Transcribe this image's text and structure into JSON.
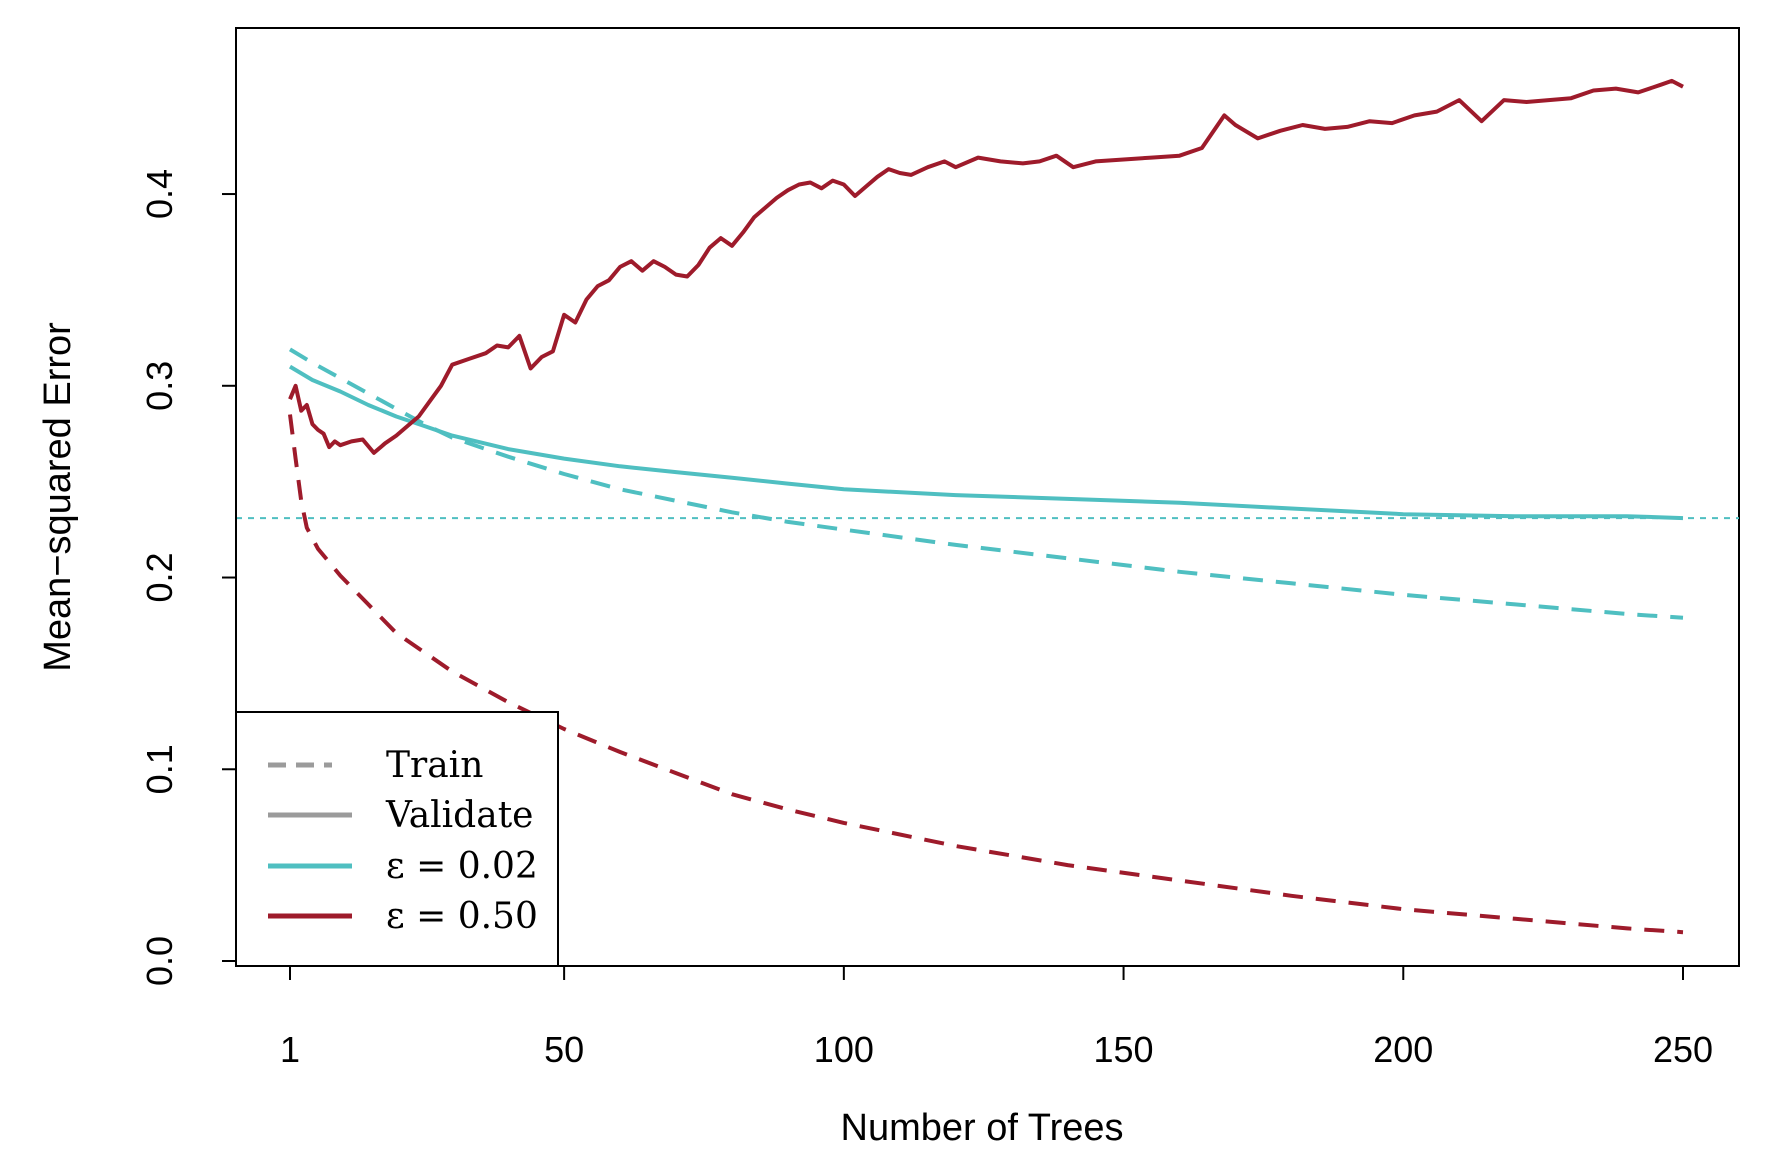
{
  "chart_data": {
    "type": "line",
    "xlabel": "Number of Trees",
    "ylabel": "Mean−squared Error",
    "xlim": [
      1,
      250
    ],
    "ylim": [
      0,
      0.46
    ],
    "x_ticks": [
      1,
      50,
      100,
      150,
      200,
      250
    ],
    "y_ticks": [
      0.0,
      0.1,
      0.2,
      0.3,
      0.4
    ],
    "y_tick_labels": [
      "0.0",
      "0.1",
      "0.2",
      "0.3",
      "0.4"
    ],
    "reference_line": {
      "y": 0.231,
      "style": "dotted",
      "color": "#4fbfc1"
    },
    "legend": {
      "position": "bottom-left",
      "entries": [
        {
          "label": "Train",
          "style": "dashed",
          "color": "#9b9b9b"
        },
        {
          "label": "Validate",
          "style": "solid",
          "color": "#9b9b9b"
        },
        {
          "label": "ε = 0.02",
          "style": "solid",
          "color": "#4fbfc1"
        },
        {
          "label": "ε = 0.50",
          "style": "solid",
          "color": "#9e1b2b"
        }
      ]
    },
    "series": [
      {
        "epsilon": "0.02",
        "split": "Train",
        "color": "#4fbfc1",
        "style": "dashed",
        "x": [
          1,
          5,
          10,
          15,
          20,
          25,
          30,
          40,
          50,
          60,
          70,
          80,
          90,
          100,
          120,
          140,
          160,
          180,
          200,
          220,
          240,
          250
        ],
        "y": [
          0.319,
          0.312,
          0.304,
          0.296,
          0.288,
          0.28,
          0.273,
          0.263,
          0.254,
          0.246,
          0.24,
          0.234,
          0.229,
          0.225,
          0.217,
          0.21,
          0.203,
          0.197,
          0.191,
          0.186,
          0.181,
          0.179
        ]
      },
      {
        "epsilon": "0.02",
        "split": "Validate",
        "color": "#4fbfc1",
        "style": "solid",
        "x": [
          1,
          5,
          10,
          15,
          20,
          25,
          30,
          40,
          50,
          60,
          70,
          80,
          90,
          100,
          120,
          140,
          160,
          180,
          200,
          220,
          240,
          250
        ],
        "y": [
          0.31,
          0.303,
          0.297,
          0.29,
          0.284,
          0.279,
          0.274,
          0.267,
          0.262,
          0.258,
          0.255,
          0.252,
          0.249,
          0.246,
          0.243,
          0.241,
          0.239,
          0.236,
          0.233,
          0.232,
          0.232,
          0.231
        ]
      },
      {
        "epsilon": "0.50",
        "split": "Train",
        "color": "#9e1b2b",
        "style": "dashed",
        "x": [
          1,
          2,
          3,
          4,
          6,
          8,
          10,
          15,
          20,
          25,
          30,
          35,
          40,
          45,
          50,
          60,
          70,
          80,
          90,
          100,
          120,
          140,
          160,
          180,
          200,
          220,
          240,
          250
        ],
        "y": [
          0.285,
          0.262,
          0.24,
          0.226,
          0.215,
          0.208,
          0.201,
          0.186,
          0.171,
          0.161,
          0.151,
          0.143,
          0.135,
          0.128,
          0.121,
          0.109,
          0.098,
          0.087,
          0.079,
          0.072,
          0.06,
          0.05,
          0.042,
          0.034,
          0.027,
          0.022,
          0.017,
          0.015
        ]
      },
      {
        "epsilon": "0.50",
        "split": "Validate",
        "color": "#9e1b2b",
        "style": "solid",
        "x": [
          1,
          2,
          3,
          4,
          5,
          6,
          7,
          8,
          9,
          10,
          12,
          14,
          16,
          18,
          20,
          22,
          24,
          26,
          28,
          30,
          33,
          36,
          38,
          40,
          42,
          44,
          46,
          48,
          50,
          52,
          54,
          56,
          58,
          60,
          62,
          64,
          66,
          68,
          70,
          72,
          74,
          76,
          78,
          80,
          82,
          84,
          86,
          88,
          90,
          92,
          94,
          96,
          98,
          100,
          102,
          104,
          106,
          108,
          110,
          112,
          115,
          118,
          120,
          124,
          128,
          132,
          135,
          138,
          141,
          145,
          150,
          155,
          160,
          164,
          168,
          170,
          174,
          178,
          182,
          186,
          190,
          194,
          198,
          202,
          206,
          210,
          214,
          218,
          222,
          226,
          230,
          234,
          238,
          242,
          246,
          248,
          250
        ],
        "y": [
          0.293,
          0.3,
          0.287,
          0.29,
          0.28,
          0.277,
          0.275,
          0.268,
          0.271,
          0.269,
          0.271,
          0.272,
          0.265,
          0.27,
          0.274,
          0.279,
          0.284,
          0.292,
          0.3,
          0.311,
          0.314,
          0.317,
          0.321,
          0.32,
          0.326,
          0.309,
          0.315,
          0.318,
          0.337,
          0.333,
          0.345,
          0.352,
          0.355,
          0.362,
          0.365,
          0.36,
          0.365,
          0.362,
          0.358,
          0.357,
          0.363,
          0.372,
          0.377,
          0.373,
          0.38,
          0.388,
          0.393,
          0.398,
          0.402,
          0.405,
          0.406,
          0.403,
          0.407,
          0.405,
          0.399,
          0.404,
          0.409,
          0.413,
          0.411,
          0.41,
          0.414,
          0.417,
          0.414,
          0.419,
          0.417,
          0.416,
          0.417,
          0.42,
          0.414,
          0.417,
          0.418,
          0.419,
          0.42,
          0.424,
          0.441,
          0.436,
          0.429,
          0.433,
          0.436,
          0.434,
          0.435,
          0.438,
          0.437,
          0.441,
          0.443,
          0.449,
          0.438,
          0.449,
          0.448,
          0.449,
          0.45,
          0.454,
          0.455,
          0.453,
          0.457,
          0.459,
          0.456
        ]
      }
    ]
  }
}
